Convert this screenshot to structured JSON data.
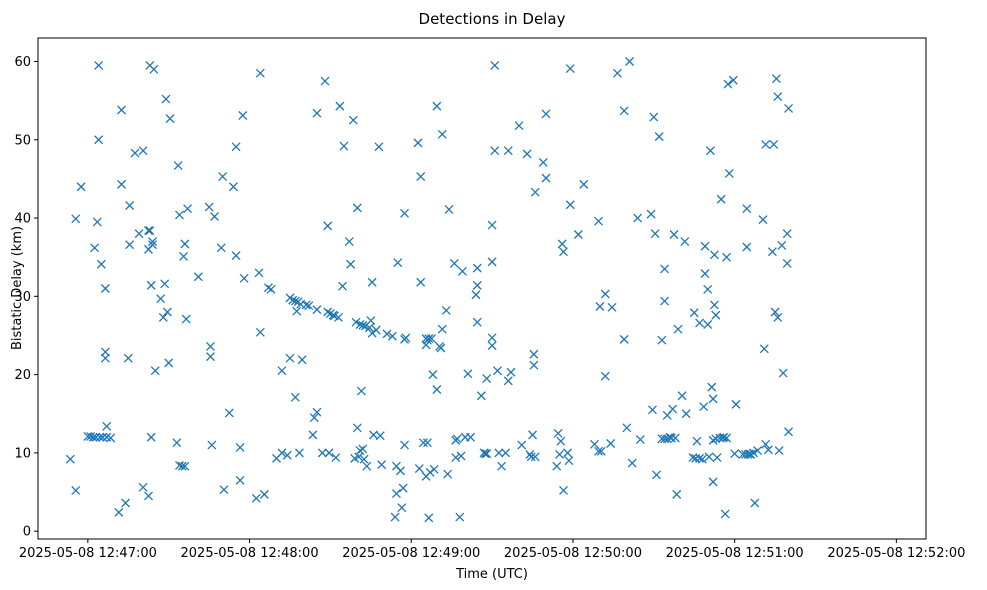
{
  "chart_data": {
    "type": "scatter",
    "title": "Detections in Delay",
    "xlabel": "Time (UTC)",
    "ylabel": "Bistatic Delay (km)",
    "marker": "x",
    "color": "#1f77b4",
    "x_unit": "seconds after 2025-05-08 12:47:00",
    "xlim": [
      -18.5,
      311
    ],
    "ylim": [
      -1,
      63
    ],
    "x_ticks": [
      {
        "value": 0,
        "label": "2025-05-08 12:47:00"
      },
      {
        "value": 60,
        "label": "2025-05-08 12:48:00"
      },
      {
        "value": 120,
        "label": "2025-05-08 12:49:00"
      },
      {
        "value": 180,
        "label": "2025-05-08 12:50:00"
      },
      {
        "value": 240,
        "label": "2025-05-08 12:51:00"
      },
      {
        "value": 300,
        "label": "2025-05-08 12:52:00"
      }
    ],
    "y_ticks": [
      0,
      10,
      20,
      30,
      40,
      50,
      60
    ],
    "points": [
      [
        -6.5,
        9.2
      ],
      [
        -4.5,
        5.2
      ],
      [
        -4.5,
        39.9
      ],
      [
        -2.5,
        44
      ],
      [
        0,
        12.1
      ],
      [
        1,
        12.1
      ],
      [
        2,
        12
      ],
      [
        2.5,
        36.2
      ],
      [
        3,
        12
      ],
      [
        3.5,
        39.5
      ],
      [
        4,
        59.5
      ],
      [
        4,
        50
      ],
      [
        4.5,
        12
      ],
      [
        5,
        34.1
      ],
      [
        5.5,
        12
      ],
      [
        6.5,
        31
      ],
      [
        6.5,
        22.9
      ],
      [
        6.5,
        22.1
      ],
      [
        7,
        13.4
      ],
      [
        7,
        12
      ],
      [
        8.5,
        11.9
      ],
      [
        11.5,
        2.4
      ],
      [
        12.5,
        44.3
      ],
      [
        12.5,
        53.8
      ],
      [
        14,
        3.6
      ],
      [
        15,
        22.1
      ],
      [
        15.5,
        36.6
      ],
      [
        15.5,
        41.6
      ],
      [
        17.5,
        48.3
      ],
      [
        19,
        38
      ],
      [
        20.5,
        5.6
      ],
      [
        20.5,
        48.6
      ],
      [
        22.5,
        4.5
      ],
      [
        22.5,
        36
      ],
      [
        22.5,
        38.4
      ],
      [
        23,
        38.4
      ],
      [
        23,
        59.5
      ],
      [
        23.5,
        31.4
      ],
      [
        23.5,
        12
      ],
      [
        24,
        36.6
      ],
      [
        24,
        37
      ],
      [
        24.5,
        59
      ],
      [
        25,
        20.5
      ],
      [
        27,
        29.7
      ],
      [
        28,
        27.3
      ],
      [
        28.5,
        31.6
      ],
      [
        29,
        55.2
      ],
      [
        29.5,
        28
      ],
      [
        30,
        21.5
      ],
      [
        30.5,
        52.7
      ],
      [
        33,
        11.3
      ],
      [
        33.5,
        46.7
      ],
      [
        34,
        40.4
      ],
      [
        34,
        8.4
      ],
      [
        35,
        8.3
      ],
      [
        35.5,
        35.1
      ],
      [
        36,
        36.7
      ],
      [
        36,
        8.3
      ],
      [
        36.5,
        27.1
      ],
      [
        37,
        41.2
      ],
      [
        41,
        32.5
      ],
      [
        45,
        41.4
      ],
      [
        45.5,
        23.6
      ],
      [
        45.5,
        22.3
      ],
      [
        46,
        11
      ],
      [
        47,
        40.2
      ],
      [
        49.5,
        36.2
      ],
      [
        50,
        45.3
      ],
      [
        50.5,
        5.3
      ],
      [
        52.5,
        15.1
      ],
      [
        54,
        44
      ],
      [
        55,
        49.1
      ],
      [
        55,
        35.2
      ],
      [
        56.5,
        6.5
      ],
      [
        56.5,
        10.7
      ],
      [
        57.5,
        53.1
      ],
      [
        58,
        32.3
      ],
      [
        62.5,
        4.2
      ],
      [
        63.5,
        33
      ],
      [
        64,
        58.5
      ],
      [
        64,
        25.4
      ],
      [
        65.5,
        4.7
      ],
      [
        67,
        31.1
      ],
      [
        68,
        30.9
      ],
      [
        70,
        9.3
      ],
      [
        72,
        10
      ],
      [
        72,
        20.5
      ],
      [
        74,
        9.7
      ],
      [
        75,
        22.1
      ],
      [
        75,
        29.8
      ],
      [
        76,
        29.5
      ],
      [
        77,
        29.4
      ],
      [
        77,
        17.1
      ],
      [
        77.5,
        28.1
      ],
      [
        78,
        29.3
      ],
      [
        78.5,
        10
      ],
      [
        79,
        29
      ],
      [
        79.5,
        21.9
      ],
      [
        81,
        28.9
      ],
      [
        82,
        28.8
      ],
      [
        83.5,
        12.3
      ],
      [
        84,
        14.5
      ],
      [
        85,
        53.4
      ],
      [
        85,
        28.3
      ],
      [
        85,
        15.2
      ],
      [
        87,
        10
      ],
      [
        88,
        57.5
      ],
      [
        89,
        39
      ],
      [
        89,
        28
      ],
      [
        89.5,
        10
      ],
      [
        90,
        27.8
      ],
      [
        91,
        27.6
      ],
      [
        91.5,
        27.5
      ],
      [
        92,
        9.4
      ],
      [
        93,
        27.3
      ],
      [
        93.5,
        54.3
      ],
      [
        94.5,
        31.3
      ],
      [
        95,
        49.2
      ],
      [
        97,
        37
      ],
      [
        97.5,
        34.1
      ],
      [
        98.5,
        52.5
      ],
      [
        99,
        9.3
      ],
      [
        99.5,
        26.7
      ],
      [
        100,
        41.3
      ],
      [
        100,
        13.2
      ],
      [
        100.5,
        9.5
      ],
      [
        101,
        26.4
      ],
      [
        101,
        10.3
      ],
      [
        101.5,
        17.9
      ],
      [
        102,
        10.5
      ],
      [
        102,
        26.3
      ],
      [
        102.5,
        9.2
      ],
      [
        103,
        26.2
      ],
      [
        103.5,
        8.3
      ],
      [
        104.5,
        26
      ],
      [
        105,
        26.9
      ],
      [
        105.5,
        31.8
      ],
      [
        105.5,
        25.3
      ],
      [
        106,
        12.3
      ],
      [
        107,
        25.7
      ],
      [
        108,
        49.1
      ],
      [
        108.5,
        12.2
      ],
      [
        109,
        8.5
      ],
      [
        111,
        25.2
      ],
      [
        113,
        24.9
      ],
      [
        114,
        1.8
      ],
      [
        114.5,
        8.3
      ],
      [
        114.5,
        4.8
      ],
      [
        115,
        34.3
      ],
      [
        116,
        7.7
      ],
      [
        116.5,
        3
      ],
      [
        117,
        5.5
      ],
      [
        117.5,
        24.5
      ],
      [
        117.5,
        40.6
      ],
      [
        117.5,
        11
      ],
      [
        118,
        24.7
      ],
      [
        122.5,
        49.6
      ],
      [
        123,
        8
      ],
      [
        123.5,
        31.8
      ],
      [
        123.5,
        45.3
      ],
      [
        124.5,
        11.3
      ],
      [
        125.5,
        24.6
      ],
      [
        125.5,
        7
      ],
      [
        125.5,
        23.8
      ],
      [
        126,
        11.3
      ],
      [
        126,
        24.4
      ],
      [
        126.5,
        1.7
      ],
      [
        126.5,
        24.6
      ],
      [
        127,
        7.5
      ],
      [
        127.5,
        24.6
      ],
      [
        128,
        20
      ],
      [
        128.5,
        7.9
      ],
      [
        129.5,
        54.3
      ],
      [
        129.5,
        18.1
      ],
      [
        130.5,
        23.6
      ],
      [
        131,
        23.4
      ],
      [
        131.5,
        50.7
      ],
      [
        131.5,
        25.8
      ],
      [
        133,
        28.2
      ],
      [
        133.5,
        7.3
      ],
      [
        134,
        41.1
      ],
      [
        136,
        34.2
      ],
      [
        136.5,
        11.6
      ],
      [
        136.5,
        9.4
      ],
      [
        137,
        11.8
      ],
      [
        138,
        1.8
      ],
      [
        138.5,
        9.6
      ],
      [
        139,
        33.2
      ],
      [
        140,
        12
      ],
      [
        141,
        20.1
      ],
      [
        142,
        12
      ],
      [
        144,
        30.2
      ],
      [
        144.5,
        33.6
      ],
      [
        144.5,
        31.4
      ],
      [
        144.5,
        26.7
      ],
      [
        146,
        17.3
      ],
      [
        147,
        10
      ],
      [
        147.5,
        9.9
      ],
      [
        148,
        19.5
      ],
      [
        148,
        9.9
      ],
      [
        150,
        24.7
      ],
      [
        150,
        23.7
      ],
      [
        150,
        34.4
      ],
      [
        150,
        39.1
      ],
      [
        151,
        59.5
      ],
      [
        151,
        48.6
      ],
      [
        152,
        20.5
      ],
      [
        152.5,
        10
      ],
      [
        153.5,
        8.3
      ],
      [
        155,
        10
      ],
      [
        156,
        48.6
      ],
      [
        156,
        19.2
      ],
      [
        157,
        20.3
      ],
      [
        160,
        51.8
      ],
      [
        161,
        11
      ],
      [
        163,
        48.2
      ],
      [
        164,
        9.8
      ],
      [
        164.5,
        9.5
      ],
      [
        165,
        12.3
      ],
      [
        165.5,
        22.6
      ],
      [
        165.5,
        21.2
      ],
      [
        166,
        43.3
      ],
      [
        166,
        9.5
      ],
      [
        169,
        47.1
      ],
      [
        170,
        53.3
      ],
      [
        170,
        45.1
      ],
      [
        174,
        8.3
      ],
      [
        174.5,
        12.5
      ],
      [
        175,
        9.8
      ],
      [
        175.5,
        11.5
      ],
      [
        176,
        36.7
      ],
      [
        176.5,
        35.7
      ],
      [
        176.5,
        5.2
      ],
      [
        178,
        10
      ],
      [
        178.5,
        9
      ],
      [
        179,
        59.1
      ],
      [
        179,
        41.7
      ],
      [
        182,
        37.9
      ],
      [
        184,
        44.3
      ],
      [
        188,
        11.1
      ],
      [
        189.5,
        39.6
      ],
      [
        189.5,
        10.2
      ],
      [
        190,
        28.7
      ],
      [
        190.5,
        10.2
      ],
      [
        192,
        19.8
      ],
      [
        192,
        30.3
      ],
      [
        194,
        11.2
      ],
      [
        194.5,
        28.6
      ],
      [
        196.5,
        58.5
      ],
      [
        199,
        53.7
      ],
      [
        199,
        24.5
      ],
      [
        200,
        13.2
      ],
      [
        201,
        60
      ],
      [
        202,
        8.7
      ],
      [
        204,
        40
      ],
      [
        205,
        11.7
      ],
      [
        209,
        40.5
      ],
      [
        209.5,
        15.5
      ],
      [
        210,
        52.9
      ],
      [
        210.5,
        38
      ],
      [
        211,
        7.2
      ],
      [
        212,
        50.4
      ],
      [
        213,
        11.8
      ],
      [
        213,
        24.4
      ],
      [
        214,
        11.8
      ],
      [
        214,
        33.5
      ],
      [
        214,
        29.4
      ],
      [
        215,
        11.8
      ],
      [
        215,
        14.8
      ],
      [
        216,
        12
      ],
      [
        216.5,
        11.9
      ],
      [
        217,
        15.6
      ],
      [
        217.5,
        37.9
      ],
      [
        218,
        11.9
      ],
      [
        218.5,
        4.7
      ],
      [
        219,
        25.8
      ],
      [
        220.5,
        17.3
      ],
      [
        221.5,
        37
      ],
      [
        222,
        15
      ],
      [
        224.5,
        9.4
      ],
      [
        225,
        27.9
      ],
      [
        225.5,
        9.3
      ],
      [
        226,
        11.5
      ],
      [
        227,
        9.3
      ],
      [
        227,
        26.6
      ],
      [
        228,
        9.2
      ],
      [
        228.5,
        15.9
      ],
      [
        229,
        32.9
      ],
      [
        229,
        36.4
      ],
      [
        230,
        26.4
      ],
      [
        230,
        30.9
      ],
      [
        230.5,
        9.5
      ],
      [
        231,
        48.6
      ],
      [
        231.5,
        18.4
      ],
      [
        232,
        16.9
      ],
      [
        232,
        11.6
      ],
      [
        232,
        6.3
      ],
      [
        232.5,
        28.9
      ],
      [
        232.5,
        35.3
      ],
      [
        233,
        27.6
      ],
      [
        233,
        11.8
      ],
      [
        233.5,
        9.4
      ],
      [
        234.5,
        11.9
      ],
      [
        235,
        42.4
      ],
      [
        235.5,
        11.9
      ],
      [
        236,
        12
      ],
      [
        236.5,
        2.2
      ],
      [
        237,
        11.9
      ],
      [
        237,
        35
      ],
      [
        237.5,
        57.1
      ],
      [
        238,
        45.7
      ],
      [
        239.5,
        57.6
      ],
      [
        240,
        9.9
      ],
      [
        240.5,
        16.2
      ],
      [
        243,
        9.8
      ],
      [
        244,
        9.8
      ],
      [
        244.5,
        41.2
      ],
      [
        244.5,
        36.3
      ],
      [
        245,
        9.8
      ],
      [
        245.5,
        9.9
      ],
      [
        246,
        9.8
      ],
      [
        247,
        10
      ],
      [
        247.5,
        3.6
      ],
      [
        248.5,
        10.3
      ],
      [
        250.5,
        39.8
      ],
      [
        251,
        23.3
      ],
      [
        251.5,
        11.1
      ],
      [
        251.5,
        49.4
      ],
      [
        252.5,
        10.4
      ],
      [
        254,
        35.7
      ],
      [
        254.5,
        49.4
      ],
      [
        255,
        28
      ],
      [
        255.5,
        57.8
      ],
      [
        256,
        27.3
      ],
      [
        256,
        55.5
      ],
      [
        256.5,
        10.3
      ],
      [
        257.5,
        36.5
      ],
      [
        258,
        20.2
      ],
      [
        259.5,
        38
      ],
      [
        259.5,
        34.2
      ],
      [
        260,
        54
      ],
      [
        260,
        12.7
      ]
    ]
  }
}
